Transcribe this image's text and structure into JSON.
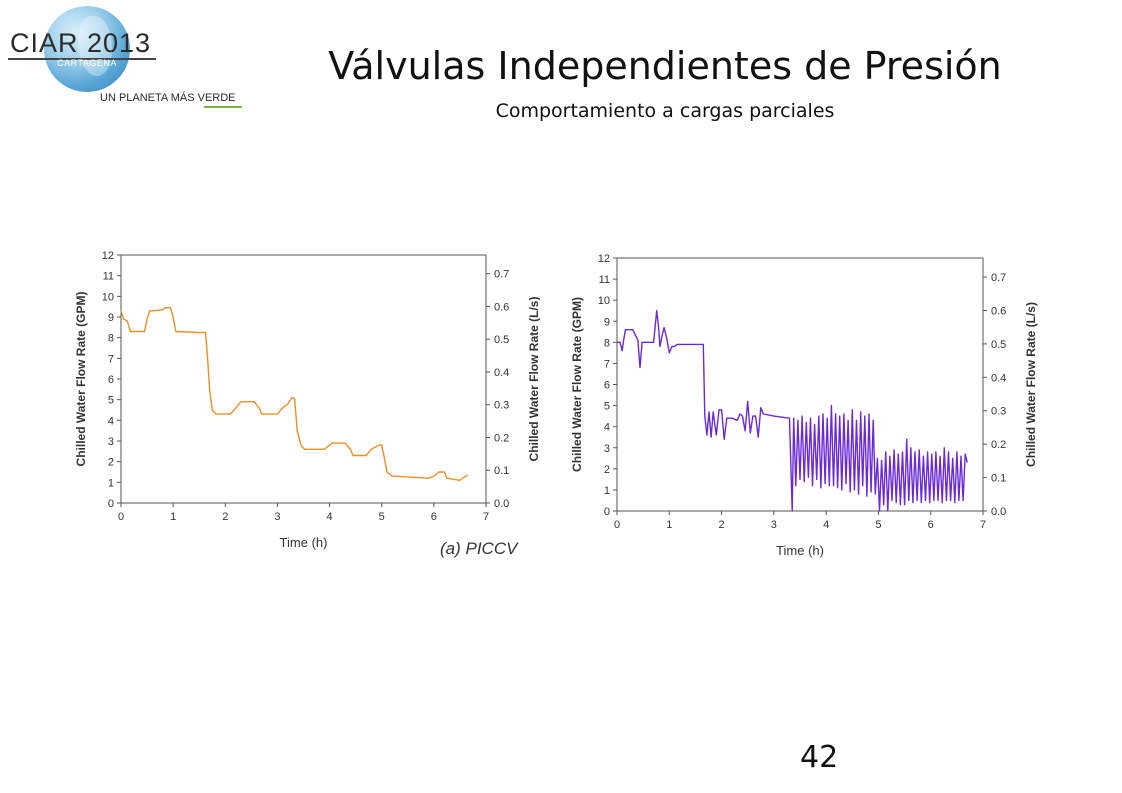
{
  "slide": {
    "title": "Válvulas Independientes de Presión",
    "subtitle": "Comportamiento a cargas parciales",
    "page_number": "42"
  },
  "logo": {
    "brand": "CIAR 2013",
    "city": "CARTAGENA",
    "tagline_prefix": "UN PLANETA MÁS ",
    "tagline_emphasis": "VERDE"
  },
  "colors": {
    "series_a": "#e8902a",
    "series_b": "#6a2bd6"
  },
  "chart_data": [
    {
      "type": "line",
      "caption": "(a) PICCV",
      "xlabel": "Time (h)",
      "ylabel_left": "Chilled Water Flow Rate (GPM)",
      "ylabel_right": "Chilled Water Flow Rate (L/s)",
      "xlim": [
        0,
        7
      ],
      "ylim_left": [
        0,
        12
      ],
      "ylim_right": [
        0,
        0.757
      ],
      "x_ticks": [
        "0",
        "1",
        "2",
        "3",
        "4",
        "5",
        "6",
        "7"
      ],
      "y_ticks_left": [
        "0",
        "1",
        "2",
        "3",
        "4",
        "5",
        "6",
        "7",
        "8",
        "9",
        "10",
        "11",
        "12"
      ],
      "y_ticks_right": [
        "0.0",
        "0.1",
        "0.2",
        "0.3",
        "0.4",
        "0.5",
        "0.6",
        "0.7"
      ],
      "series": [
        {
          "x": [
            0.0,
            0.05,
            0.12,
            0.18,
            0.25,
            0.35,
            0.45,
            0.5,
            0.55,
            0.6,
            0.8,
            0.85,
            0.95,
            1.0,
            1.05,
            1.5,
            1.62,
            1.66,
            1.7,
            1.75,
            1.82,
            2.1,
            2.2,
            2.3,
            2.4,
            2.55,
            2.65,
            2.7,
            3.0,
            3.1,
            3.2,
            3.28,
            3.33,
            3.38,
            3.45,
            3.52,
            3.9,
            4.0,
            4.05,
            4.3,
            4.4,
            4.45,
            4.7,
            4.8,
            4.95,
            5.0,
            5.05,
            5.1,
            5.2,
            5.9,
            6.0,
            6.1,
            6.2,
            6.25,
            6.5,
            6.55,
            6.65
          ],
          "y": [
            9.3,
            8.9,
            8.8,
            8.3,
            8.3,
            8.3,
            8.3,
            8.9,
            9.3,
            9.3,
            9.35,
            9.45,
            9.45,
            9.0,
            8.3,
            8.25,
            8.25,
            7.0,
            5.5,
            4.5,
            4.3,
            4.3,
            4.6,
            4.9,
            4.9,
            4.9,
            4.6,
            4.3,
            4.3,
            4.6,
            4.8,
            5.1,
            5.05,
            3.5,
            2.8,
            2.6,
            2.6,
            2.8,
            2.9,
            2.9,
            2.6,
            2.3,
            2.3,
            2.6,
            2.8,
            2.8,
            2.2,
            1.5,
            1.3,
            1.2,
            1.3,
            1.5,
            1.5,
            1.2,
            1.1,
            1.2,
            1.35
          ]
        }
      ]
    },
    {
      "type": "line",
      "caption": "",
      "xlabel": "Time (h)",
      "ylabel_left": "Chilled Water Flow Rate (GPM)",
      "ylabel_right": "Chilled Water Flow Rate (L/s)",
      "xlim": [
        0,
        7
      ],
      "ylim_left": [
        0,
        12
      ],
      "ylim_right": [
        0,
        0.757
      ],
      "x_ticks": [
        "0",
        "1",
        "2",
        "3",
        "4",
        "5",
        "6",
        "7"
      ],
      "y_ticks_left": [
        "0",
        "1",
        "2",
        "3",
        "4",
        "5",
        "6",
        "7",
        "8",
        "9",
        "10",
        "11",
        "12"
      ],
      "y_ticks_right": [
        "0.0",
        "0.1",
        "0.2",
        "0.3",
        "0.4",
        "0.5",
        "0.6",
        "0.7"
      ],
      "series": [
        {
          "x": [
            0.0,
            0.06,
            0.1,
            0.12,
            0.16,
            0.2,
            0.22,
            0.3,
            0.4,
            0.44,
            0.48,
            0.5,
            0.6,
            0.7,
            0.76,
            0.8,
            0.82,
            0.86,
            0.9,
            0.95,
            1.0,
            1.05,
            1.1,
            1.15,
            1.2,
            1.5,
            1.65,
            1.68,
            1.72,
            1.76,
            1.8,
            1.84,
            1.9,
            1.95,
            2.0,
            2.05,
            2.1,
            2.2,
            2.3,
            2.35,
            2.4,
            2.45,
            2.5,
            2.55,
            2.6,
            2.65,
            2.7,
            2.75,
            2.8,
            3.0,
            3.3,
            3.35,
            3.38,
            3.42,
            3.46,
            3.5,
            3.54,
            3.58,
            3.62,
            3.66,
            3.7,
            3.74,
            3.78,
            3.82,
            3.86,
            3.9,
            3.94,
            3.98,
            4.02,
            4.06,
            4.1,
            4.14,
            4.18,
            4.22,
            4.26,
            4.3,
            4.34,
            4.38,
            4.42,
            4.46,
            4.5,
            4.54,
            4.58,
            4.62,
            4.66,
            4.7,
            4.74,
            4.78,
            4.82,
            4.86,
            4.9,
            4.94,
            4.98,
            5.02,
            5.06,
            5.1,
            5.14,
            5.18,
            5.22,
            5.26,
            5.3,
            5.34,
            5.38,
            5.42,
            5.46,
            5.5,
            5.54,
            5.58,
            5.62,
            5.66,
            5.7,
            5.74,
            5.78,
            5.82,
            5.86,
            5.9,
            5.94,
            5.98,
            6.02,
            6.06,
            6.1,
            6.14,
            6.18,
            6.22,
            6.26,
            6.3,
            6.34,
            6.38,
            6.42,
            6.46,
            6.5,
            6.54,
            6.58,
            6.62,
            6.66,
            6.7
          ],
          "y": [
            8.0,
            8.0,
            7.6,
            8.0,
            8.6,
            8.6,
            8.6,
            8.6,
            8.1,
            6.8,
            8.0,
            8.0,
            8.0,
            8.0,
            9.5,
            8.6,
            7.8,
            8.3,
            8.7,
            8.2,
            7.5,
            7.8,
            7.8,
            7.9,
            7.9,
            7.9,
            7.9,
            4.5,
            3.6,
            4.7,
            3.5,
            4.7,
            3.6,
            4.8,
            4.8,
            3.4,
            4.4,
            4.4,
            4.3,
            4.6,
            4.5,
            3.8,
            5.2,
            3.7,
            4.5,
            4.5,
            3.5,
            4.9,
            4.6,
            4.5,
            4.4,
            0.0,
            4.4,
            1.2,
            4.3,
            1.5,
            4.5,
            1.4,
            4.2,
            1.6,
            4.4,
            1.2,
            4.1,
            1.5,
            4.5,
            1.1,
            4.6,
            1.3,
            4.4,
            1.2,
            5.0,
            1.2,
            4.6,
            1.1,
            4.5,
            1.0,
            4.6,
            1.3,
            4.3,
            0.9,
            4.8,
            1.0,
            4.3,
            0.8,
            4.7,
            1.2,
            4.5,
            0.7,
            4.6,
            0.9,
            4.3,
            0.8,
            2.5,
            0.0,
            2.4,
            0.3,
            2.8,
            0.0,
            2.6,
            0.5,
            2.9,
            0.4,
            2.7,
            0.3,
            2.8,
            0.3,
            3.4,
            0.5,
            3.0,
            0.4,
            2.8,
            0.5,
            2.9,
            0.4,
            2.6,
            0.5,
            2.8,
            0.4,
            2.7,
            0.5,
            2.8,
            0.5,
            2.6,
            0.4,
            3.0,
            0.5,
            2.8,
            0.5,
            2.5,
            0.4,
            2.8,
            0.5,
            2.6,
            0.5,
            2.7,
            2.3
          ]
        }
      ]
    }
  ]
}
